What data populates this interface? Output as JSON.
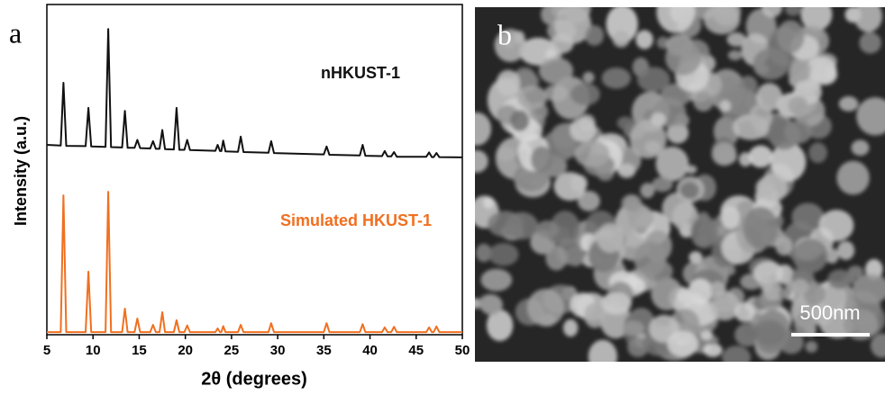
{
  "chart_data": {
    "type": "line",
    "panel_label": "a",
    "x_label": "2θ (degrees)",
    "y_label": "Intensity (a.u.)",
    "x": [
      5,
      6.5,
      6.8,
      7.1,
      9.2,
      9.5,
      9.8,
      11.35,
      11.65,
      11.95,
      13.15,
      13.45,
      13.75,
      14.5,
      14.8,
      15.1,
      16.2,
      16.5,
      16.8,
      17.2,
      17.5,
      17.8,
      18.75,
      19.05,
      19.35,
      19.9,
      20.2,
      20.5,
      23.25,
      23.5,
      23.75,
      23.9,
      24.1,
      24.35,
      25.7,
      26,
      26.3,
      29.0,
      29.3,
      29.6,
      35.0,
      35.3,
      35.6,
      38.9,
      39.2,
      39.5,
      41.3,
      41.6,
      41.9,
      42.3,
      42.6,
      42.9,
      46.1,
      46.4,
      46.7,
      46.9,
      47.2,
      47.5,
      50
    ],
    "series": [
      {
        "name": "nHKUST-1",
        "color": "#111111",
        "values": [
          57.5,
          57.3,
          76.3,
          57.2,
          57.1,
          68.7,
          57.0,
          56.9,
          92.6,
          56.8,
          56.7,
          67.8,
          56.6,
          56.6,
          59.0,
          56.5,
          56.4,
          58.6,
          56.3,
          56.3,
          62.0,
          56.2,
          56.1,
          68.7,
          56.0,
          56.0,
          59.0,
          55.9,
          55.7,
          57.5,
          55.6,
          55.6,
          58.8,
          55.5,
          55.4,
          60.0,
          55.3,
          55.1,
          58.6,
          55.0,
          54.6,
          57.0,
          54.5,
          54.3,
          57.5,
          54.2,
          54.1,
          55.6,
          54.0,
          54.0,
          55.3,
          53.9,
          53.9,
          55.2,
          53.8,
          53.8,
          55.0,
          53.8,
          53.7
        ]
      },
      {
        "name": "Simulated HKUST-1",
        "color": "#f07020",
        "values": [
          0.8,
          0.8,
          42.2,
          0.8,
          0.8,
          19.1,
          0.8,
          0.8,
          43.3,
          0.8,
          0.8,
          7.9,
          0.8,
          0.8,
          4.9,
          0.8,
          0.8,
          3.0,
          0.8,
          0.8,
          6.8,
          0.8,
          0.8,
          4.4,
          0.8,
          0.8,
          2.8,
          0.8,
          0.8,
          1.9,
          0.8,
          0.8,
          2.6,
          0.8,
          0.8,
          3.0,
          0.8,
          0.8,
          3.5,
          0.8,
          0.8,
          3.5,
          0.8,
          0.8,
          3.2,
          0.8,
          0.8,
          2.2,
          0.8,
          0.8,
          2.4,
          0.8,
          0.8,
          2.2,
          0.8,
          0.8,
          2.5,
          0.8,
          0.8
        ]
      }
    ],
    "xlim": [
      5,
      50
    ],
    "xticks": [
      5,
      10,
      15,
      20,
      25,
      30,
      35,
      40,
      45,
      50
    ],
    "ylim": [
      0,
      100
    ]
  },
  "image_panel": {
    "label": "b",
    "scale_bar": "500nm"
  }
}
